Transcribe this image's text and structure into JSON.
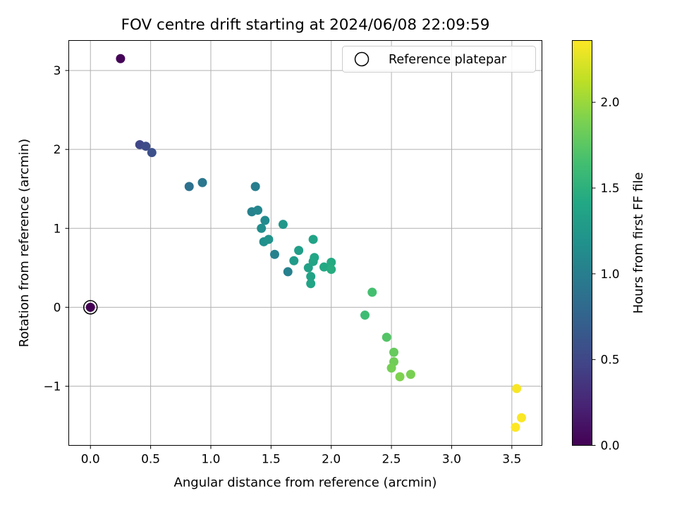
{
  "chart_data": {
    "type": "scatter",
    "title": "FOV centre drift starting at 2024/06/08 22:09:59",
    "xlabel": "Angular distance from reference (arcmin)",
    "ylabel": "Rotation from reference (arcmin)",
    "xlim": [
      -0.18,
      3.75
    ],
    "ylim": [
      -1.75,
      3.38
    ],
    "xticks": [
      0.0,
      0.5,
      1.0,
      1.5,
      2.0,
      2.5,
      3.0,
      3.5
    ],
    "xtick_labels": [
      "0.0",
      "0.5",
      "1.0",
      "1.5",
      "2.0",
      "2.5",
      "3.0",
      "3.5"
    ],
    "yticks": [
      -1,
      0,
      1,
      2,
      3
    ],
    "ytick_labels": [
      "−1",
      "0",
      "1",
      "2",
      "3"
    ],
    "grid": true,
    "legend": {
      "position": "top-right",
      "entries": [
        "Reference platepar"
      ]
    },
    "colorbar": {
      "label": "Hours from first FF file",
      "colormap": "viridis",
      "range": [
        0.0,
        2.36
      ],
      "ticks": [
        0.0,
        0.5,
        1.0,
        1.5,
        2.0
      ],
      "tick_labels": [
        "0.0",
        "0.5",
        "1.0",
        "1.5",
        "2.0"
      ]
    },
    "reference_point": {
      "x": 0.0,
      "y": 0.0
    },
    "points": [
      {
        "x": 0.0,
        "y": 0.0,
        "hours": 0.0
      },
      {
        "x": 0.25,
        "y": 3.15,
        "hours": 0.02
      },
      {
        "x": 0.41,
        "y": 2.06,
        "hours": 0.5
      },
      {
        "x": 0.46,
        "y": 2.04,
        "hours": 0.54
      },
      {
        "x": 0.51,
        "y": 1.96,
        "hours": 0.58
      },
      {
        "x": 0.82,
        "y": 1.53,
        "hours": 0.88
      },
      {
        "x": 0.93,
        "y": 1.58,
        "hours": 0.93
      },
      {
        "x": 1.37,
        "y": 1.53,
        "hours": 1.0
      },
      {
        "x": 1.34,
        "y": 1.21,
        "hours": 1.04
      },
      {
        "x": 1.39,
        "y": 1.23,
        "hours": 1.08
      },
      {
        "x": 1.45,
        "y": 1.1,
        "hours": 1.12
      },
      {
        "x": 1.42,
        "y": 1.0,
        "hours": 1.15
      },
      {
        "x": 1.44,
        "y": 0.83,
        "hours": 1.17
      },
      {
        "x": 1.48,
        "y": 0.86,
        "hours": 1.2
      },
      {
        "x": 1.53,
        "y": 0.67,
        "hours": 1.03
      },
      {
        "x": 1.6,
        "y": 1.05,
        "hours": 1.24
      },
      {
        "x": 1.64,
        "y": 0.45,
        "hours": 1.02
      },
      {
        "x": 1.69,
        "y": 0.59,
        "hours": 1.28
      },
      {
        "x": 1.73,
        "y": 0.72,
        "hours": 1.31
      },
      {
        "x": 1.81,
        "y": 0.5,
        "hours": 1.34
      },
      {
        "x": 1.83,
        "y": 0.39,
        "hours": 1.35
      },
      {
        "x": 1.83,
        "y": 0.3,
        "hours": 1.37
      },
      {
        "x": 1.85,
        "y": 0.86,
        "hours": 1.36
      },
      {
        "x": 1.85,
        "y": 0.58,
        "hours": 1.38
      },
      {
        "x": 1.86,
        "y": 0.63,
        "hours": 1.4
      },
      {
        "x": 1.94,
        "y": 0.51,
        "hours": 1.42
      },
      {
        "x": 2.0,
        "y": 0.57,
        "hours": 1.44
      },
      {
        "x": 2.0,
        "y": 0.48,
        "hours": 1.46
      },
      {
        "x": 2.28,
        "y": -0.1,
        "hours": 1.62
      },
      {
        "x": 2.34,
        "y": 0.19,
        "hours": 1.65
      },
      {
        "x": 2.46,
        "y": -0.38,
        "hours": 1.72
      },
      {
        "x": 2.52,
        "y": -0.57,
        "hours": 1.8
      },
      {
        "x": 2.52,
        "y": -0.69,
        "hours": 1.84
      },
      {
        "x": 2.5,
        "y": -0.77,
        "hours": 1.86
      },
      {
        "x": 2.57,
        "y": -0.88,
        "hours": 1.9
      },
      {
        "x": 2.66,
        "y": -0.85,
        "hours": 1.88
      },
      {
        "x": 3.54,
        "y": -1.03,
        "hours": 2.34
      },
      {
        "x": 3.58,
        "y": -1.4,
        "hours": 2.35
      },
      {
        "x": 3.53,
        "y": -1.52,
        "hours": 2.36
      }
    ]
  }
}
